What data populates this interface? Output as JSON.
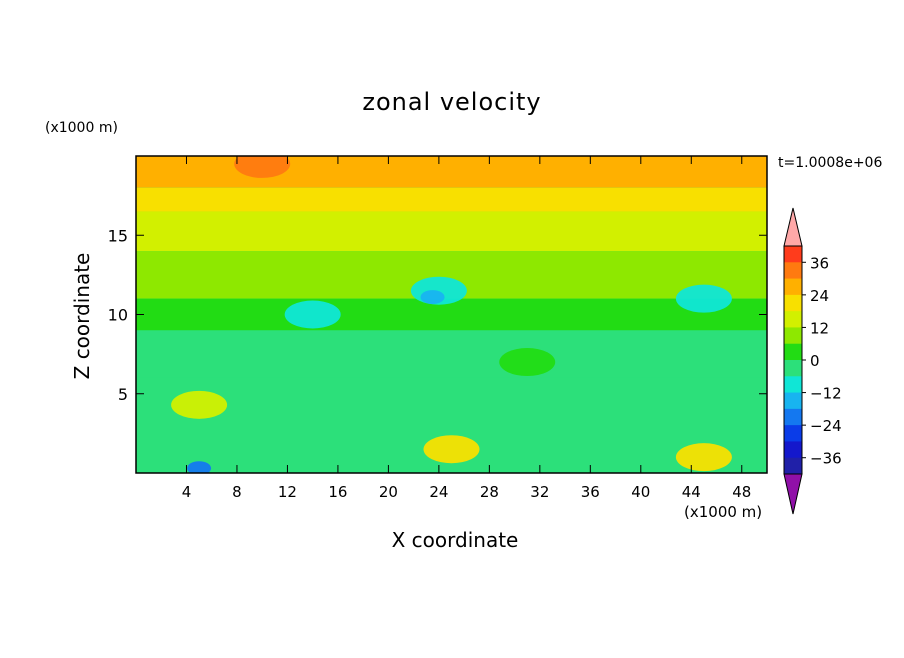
{
  "chart_data": {
    "type": "heatmap",
    "title": "zonal velocity",
    "xlabel": "X coordinate",
    "ylabel": "Z coordinate",
    "x_unit": "(x1000 m)",
    "y_unit": "(x1000 m)",
    "time_label": "t=1.0008e+06",
    "xlim": [
      0,
      50
    ],
    "ylim": [
      0,
      20
    ],
    "x_ticks": [
      "4",
      "8",
      "12",
      "16",
      "20",
      "24",
      "28",
      "32",
      "36",
      "40",
      "44",
      "48"
    ],
    "y_ticks": [
      "5",
      "10",
      "15"
    ],
    "colorbar": {
      "levels": [
        -42,
        -36,
        -30,
        -24,
        -18,
        -12,
        -6,
        0,
        6,
        12,
        18,
        24,
        30,
        36,
        42
      ],
      "labels": [
        "36",
        "24",
        "12",
        "0",
        "−12",
        "−24",
        "−36"
      ],
      "colors": [
        "#6a0aa0",
        "#2020a8",
        "#1418cc",
        "#0a3ce8",
        "#1478f0",
        "#18b4f0",
        "#10e6d6",
        "#2ce07a",
        "#22dc14",
        "#8ee800",
        "#d2f000",
        "#f8e000",
        "#ffb000",
        "#ff7a10",
        "#ff3c1c",
        "#e81414",
        "#ffa8a8",
        "#9010a8"
      ]
    },
    "value_bands_by_height": [
      {
        "z_range": [
          18,
          20
        ],
        "value": 24
      },
      {
        "z_range": [
          16.5,
          18
        ],
        "value": 18
      },
      {
        "z_range": [
          14,
          16.5
        ],
        "value": 12
      },
      {
        "z_range": [
          11,
          14
        ],
        "value": 6
      },
      {
        "z_range": [
          9,
          11
        ],
        "value": 0
      },
      {
        "z_range": [
          6,
          9
        ],
        "value": -6
      },
      {
        "z_range": [
          0,
          6
        ],
        "value": -6
      }
    ],
    "features": [
      {
        "x": 24,
        "z": 11.5,
        "value": -12
      },
      {
        "x": 23.5,
        "z": 11.1,
        "value": -18
      },
      {
        "x": 45,
        "z": 11,
        "value": -12
      },
      {
        "x": 14,
        "z": 10,
        "value": -12
      },
      {
        "x": 5,
        "z": 4.3,
        "value": 12
      },
      {
        "x": 10,
        "z": 19.5,
        "value": 30
      },
      {
        "x": 5,
        "z": 0.3,
        "value": -24
      },
      {
        "x": 25,
        "z": 1.5,
        "value": 18
      },
      {
        "x": 45,
        "z": 1,
        "value": 18
      },
      {
        "x": 31,
        "z": 7,
        "value": 0
      }
    ]
  }
}
